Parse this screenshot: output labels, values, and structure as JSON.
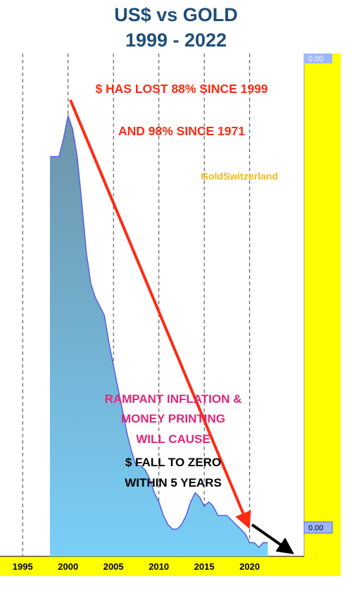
{
  "header": {
    "title_line1": "US$ vs GOLD",
    "title_line2": "1999 - 2022"
  },
  "colors": {
    "title": "#1f4e79",
    "panel": "#ffff00",
    "area_top": "#6d93a8",
    "area_bottom": "#79cff8",
    "area_line": "#5a62e6",
    "arrow_red": "#ff2a12",
    "arrow_black": "#000000",
    "annotation_red": "#ff2a12",
    "annotation_pink": "#e0277a",
    "brand": "#f5b81c",
    "badge": "#9db7ff"
  },
  "chart_data": {
    "type": "area",
    "x_ticks": [
      "1995",
      "2000",
      "2005",
      "2010",
      "2015",
      "2020"
    ],
    "x_range": [
      1992.5,
      2026
    ],
    "y_range": [
      0,
      1
    ],
    "right_axis_labels": {
      "top": "0.00",
      "bottom": "0.00"
    },
    "series": [
      {
        "x": [
          1998.0,
          1999.0,
          1999.5,
          2000.0,
          2000.5,
          2001.0,
          2001.5,
          2002.0,
          2002.5,
          2003.0,
          2003.5,
          2004.0,
          2004.5,
          2005.0,
          2005.5,
          2006.0,
          2006.5,
          2007.0,
          2007.5,
          2008.0,
          2008.5,
          2009.0,
          2009.5,
          2010.0,
          2010.5,
          2011.0,
          2011.5,
          2012.0,
          2012.5,
          2013.0,
          2013.5,
          2014.0,
          2014.5,
          2015.0,
          2015.5,
          2016.0,
          2016.5,
          2017.0,
          2017.5,
          2018.0,
          2018.5,
          2019.0,
          2019.5,
          2020.0,
          2020.5,
          2021.0,
          2021.5,
          2022.0
        ],
        "values": [
          0.88,
          0.88,
          0.92,
          0.97,
          0.94,
          0.88,
          0.78,
          0.67,
          0.6,
          0.57,
          0.55,
          0.53,
          0.47,
          0.42,
          0.37,
          0.32,
          0.27,
          0.23,
          0.2,
          0.2,
          0.19,
          0.17,
          0.14,
          0.12,
          0.09,
          0.07,
          0.06,
          0.06,
          0.07,
          0.09,
          0.12,
          0.14,
          0.13,
          0.11,
          0.12,
          0.11,
          0.09,
          0.09,
          0.09,
          0.08,
          0.07,
          0.06,
          0.05,
          0.03,
          0.03,
          0.02,
          0.03,
          0.03
        ]
      }
    ],
    "annotations": [
      {
        "text": "$ HAS LOST 88% SINCE 1999",
        "color": "#ff2a12"
      },
      {
        "text": "AND 98% SINCE  1971",
        "color": "#ff2a12"
      },
      {
        "text": "GoldSwitzerland",
        "color": "#f5b81c"
      },
      {
        "text": "RAMPANT INFLATION &",
        "color": "#e0277a"
      },
      {
        "text": "MONEY PRINTING",
        "color": "#e0277a"
      },
      {
        "text": "WILL CAUSE",
        "color": "#e0277a"
      },
      {
        "text": "$ FALL TO ZERO",
        "color": "#000000"
      },
      {
        "text": "WITHIN 5 YEARS",
        "color": "#000000"
      }
    ]
  }
}
